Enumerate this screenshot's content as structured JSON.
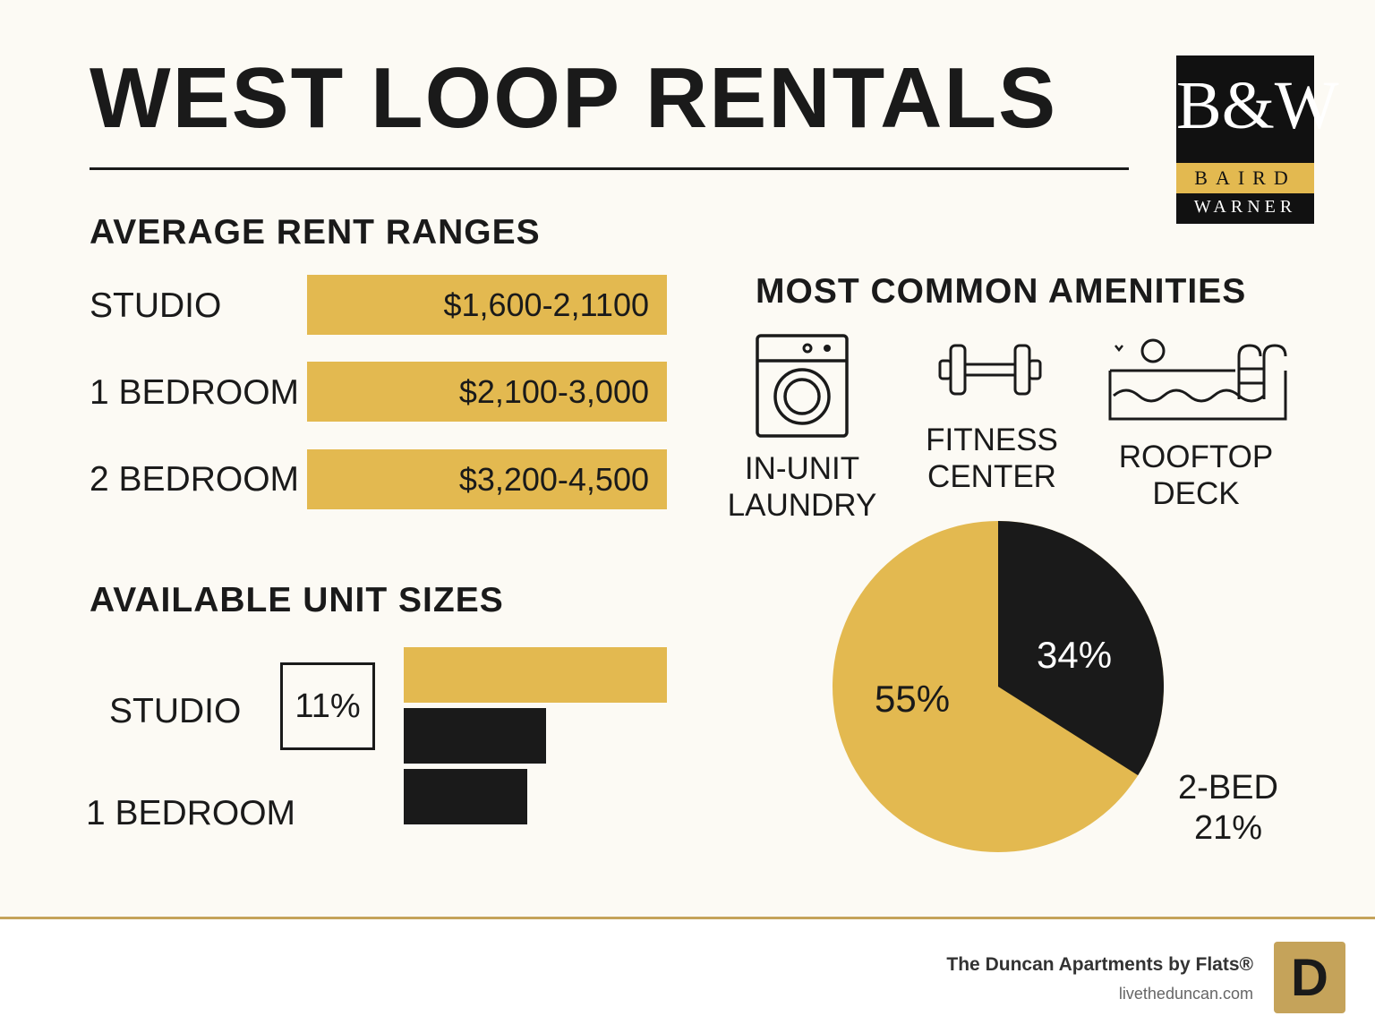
{
  "title": "WEST LOOP RENTALS",
  "brand_logo": {
    "monogram": "B&W",
    "line1": "BAIRD",
    "line2": "WARNER"
  },
  "rent": {
    "heading": "AVERAGE RENT RANGES",
    "rows": [
      {
        "label": "STUDIO",
        "value": "$1,600-2,1100"
      },
      {
        "label": "1 BEDROOM",
        "value": "$2,100-3,000"
      },
      {
        "label": "2 BEDROOM",
        "value": "$3,200-4,500"
      }
    ]
  },
  "amenities": {
    "heading": "MOST COMMON AMENITIES",
    "items": [
      {
        "icon": "washing-machine-icon",
        "label": "IN-UNIT LAUNDRY"
      },
      {
        "icon": "dumbbell-icon",
        "label": "FITNESS CENTER"
      },
      {
        "icon": "pool-icon",
        "label": "ROOFTOP DECK"
      }
    ]
  },
  "sizes": {
    "heading": "AVAILABLE UNIT SIZES",
    "label_studio": "STUDIO",
    "label_1bed": "1 BEDROOM",
    "studio_box": "11%"
  },
  "pie_labels": {
    "slice_black": "34%",
    "slice_gold": "55%",
    "outside_line1": "2-BED",
    "outside_line2": "21%"
  },
  "footer": {
    "name": "The Duncan Apartments by Flats®",
    "url": "livetheduncan.com",
    "logo_letter": "D"
  },
  "colors": {
    "gold": "#e3b950",
    "black": "#1a1a1a",
    "background": "#fcfaf4"
  },
  "chart_data": [
    {
      "type": "bar",
      "title": "AVERAGE RENT RANGES",
      "orientation": "horizontal",
      "categories": [
        "STUDIO",
        "1 BEDROOM",
        "2 BEDROOM"
      ],
      "labels": [
        "$1,600-2,1100",
        "$2,100-3,000",
        "$3,200-4,500"
      ]
    },
    {
      "type": "bar",
      "title": "AVAILABLE UNIT SIZES",
      "orientation": "horizontal",
      "values": [
        100,
        54,
        47
      ],
      "colors": [
        "#e3b950",
        "#1a1a1a",
        "#1a1a1a"
      ]
    },
    {
      "type": "pie",
      "slices": [
        {
          "label": "34%",
          "value": 34,
          "color": "#1a1a1a"
        },
        {
          "label": "55%",
          "value": 55,
          "color": "#e3b950"
        }
      ]
    }
  ]
}
